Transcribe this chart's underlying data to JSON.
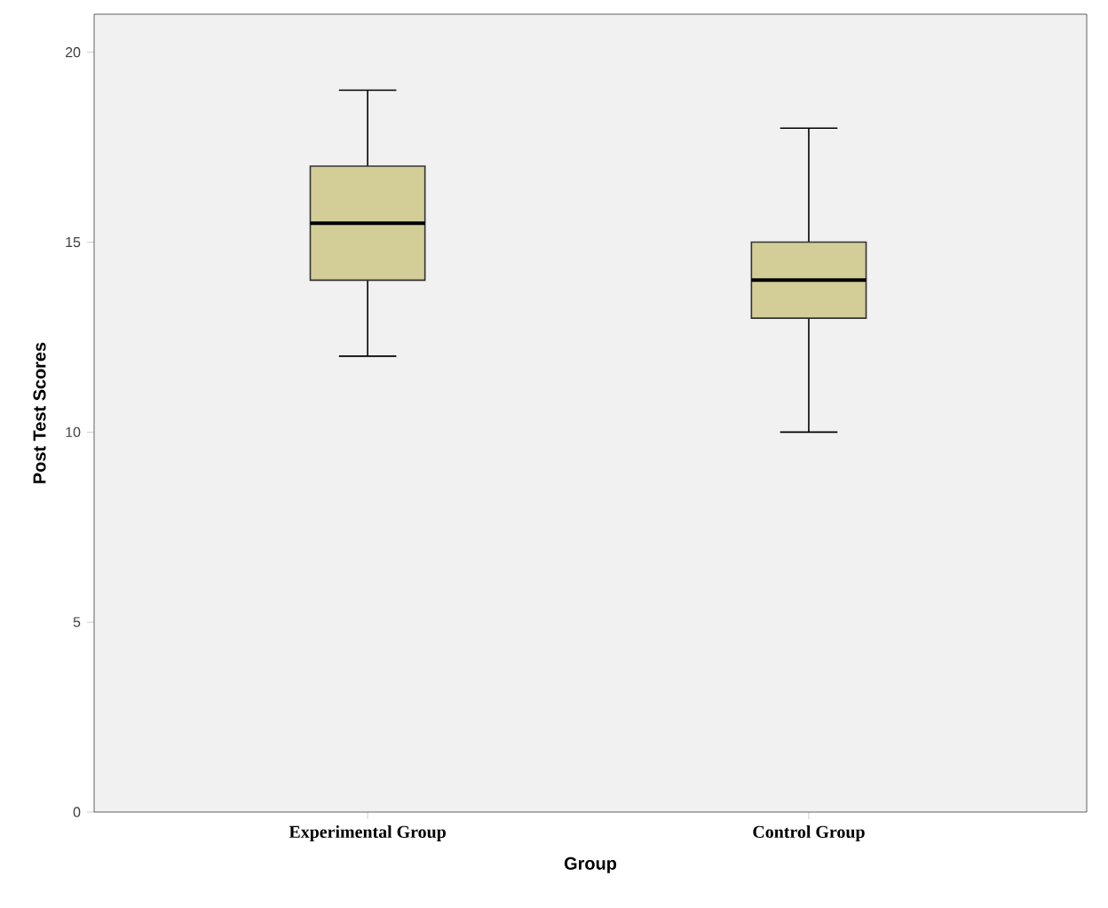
{
  "chart_data": {
    "type": "box",
    "xlabel": "Group",
    "ylabel": "Post Test Scores",
    "categories": [
      "Experimental Group",
      "Control Group"
    ],
    "color": "#d3cd98",
    "boxes": [
      {
        "low": 12,
        "q1": 14,
        "median": 15.5,
        "q3": 17,
        "high": 19
      },
      {
        "low": 10,
        "q1": 13,
        "median": 14,
        "q3": 15,
        "high": 18
      }
    ],
    "ylim": [
      0,
      21
    ],
    "yticks": [
      0,
      5,
      10,
      15,
      20
    ],
    "grid": false
  }
}
